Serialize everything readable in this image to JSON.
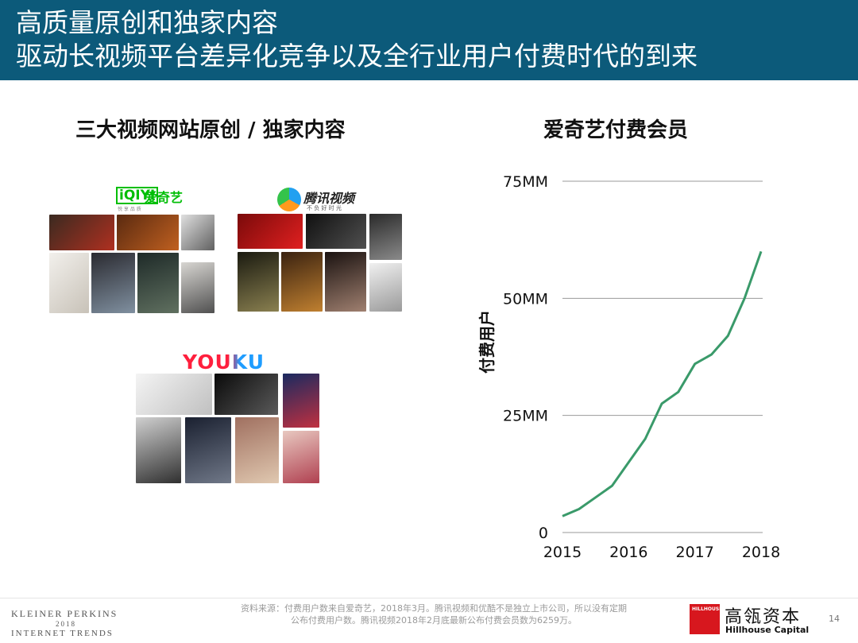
{
  "header": {
    "line1": "高质量原创和独家内容",
    "line2": "驱动长视频平台差异化竞争以及全行业用户付费时代的到来"
  },
  "left_panel": {
    "title": "三大视频网站原创 / 独家内容",
    "iqiyi_logo": "iQIYI",
    "iqiyi_name": "爱奇艺",
    "iqiyi_tagline": "悦 享 品 质",
    "tencent_name": "腾讯视频",
    "tencent_tagline": "不 负 好 时 光",
    "youku_logo": "YOUKU"
  },
  "chart_data": {
    "type": "line",
    "title": "爱奇艺付费会员",
    "ylabel": "付费用户",
    "xlabel": "",
    "x_ticks": [
      "2015",
      "2016",
      "2017",
      "2018"
    ],
    "y_ticks": [
      "0",
      "25MM",
      "50MM",
      "75MM"
    ],
    "ylim": [
      0,
      75
    ],
    "xlim": [
      2015,
      2018
    ],
    "grid": true,
    "color": "#3a9a6a",
    "series": [
      {
        "x": [
          2015.0,
          2015.25,
          2015.5,
          2015.75,
          2016.0,
          2016.25,
          2016.5,
          2016.75,
          2017.0,
          2017.25,
          2017.5,
          2017.75,
          2018.0
        ],
        "values": [
          3.5,
          5.0,
          7.5,
          10.0,
          15.0,
          20.0,
          27.5,
          30.0,
          36.0,
          38.0,
          42.0,
          50.0,
          60.0
        ]
      }
    ]
  },
  "footer": {
    "left_line1": "KLEINER PERKINS",
    "left_line2": "2018",
    "left_line3": "INTERNET TRENDS",
    "source_line1": "资料来源：付费用户数来自爱奇艺，2018年3月。腾讯视频和优酷不是独立上市公司，所以没有定期",
    "source_line2": "公布付费用户数。腾讯视频2018年2月底最新公布付费会员数为6259万。",
    "brand_box": "HILLHOUSE",
    "brand_cn": "高瓴资本",
    "brand_en": "Hillhouse Capital",
    "page": "14"
  }
}
